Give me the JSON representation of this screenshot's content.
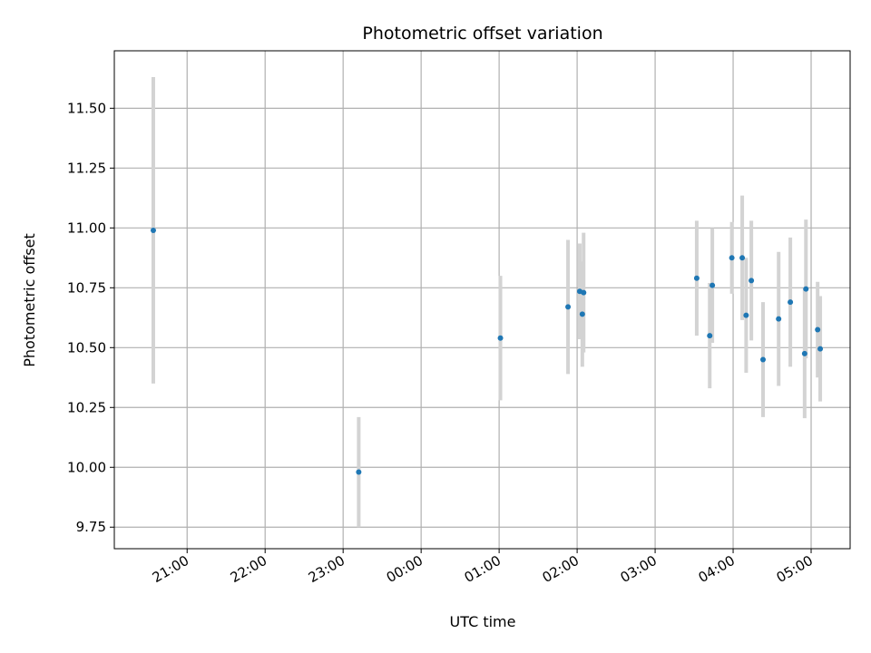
{
  "chart_data": {
    "type": "scatter",
    "title": "Photometric offset variation",
    "xlabel": "UTC time",
    "ylabel": "Photometric offset",
    "grid": true,
    "x_axis_kind": "time",
    "x_axis_dates": [
      "2024-01-01",
      "2024-01-02"
    ],
    "xlim": [
      "2024-01-01T20:04",
      "2024-01-02T05:30"
    ],
    "ylim": [
      9.66,
      11.74
    ],
    "x_ticks": [
      {
        "time": "2024-01-01T21:00",
        "label": "21:00"
      },
      {
        "time": "2024-01-01T22:00",
        "label": "22:00"
      },
      {
        "time": "2024-01-01T23:00",
        "label": "23:00"
      },
      {
        "time": "2024-01-02T00:00",
        "label": "00:00"
      },
      {
        "time": "2024-01-02T01:00",
        "label": "01:00"
      },
      {
        "time": "2024-01-02T02:00",
        "label": "02:00"
      },
      {
        "time": "2024-01-02T03:00",
        "label": "03:00"
      },
      {
        "time": "2024-01-02T04:00",
        "label": "04:00"
      },
      {
        "time": "2024-01-02T05:00",
        "label": "05:00"
      }
    ],
    "y_ticks": [
      9.75,
      10.0,
      10.25,
      10.5,
      10.75,
      11.0,
      11.25,
      11.5
    ],
    "y_tick_labels": [
      "9.75",
      "10.00",
      "10.25",
      "10.50",
      "10.75",
      "11.00",
      "11.25",
      "11.50"
    ],
    "colors": {
      "point": "#1f77b4",
      "errorbar": "#d3d3d3",
      "grid": "#b0b0b0"
    },
    "points": [
      {
        "x": "2024-01-01T20:34",
        "y": 10.99,
        "yerr": 0.64
      },
      {
        "x": "2024-01-01T23:12",
        "y": 9.98,
        "yerr": 0.23
      },
      {
        "x": "2024-01-02T01:01",
        "y": 10.54,
        "yerr": 0.26
      },
      {
        "x": "2024-01-02T01:53",
        "y": 10.67,
        "yerr": 0.28
      },
      {
        "x": "2024-01-02T02:02",
        "y": 10.735,
        "yerr": 0.2
      },
      {
        "x": "2024-01-02T02:04",
        "y": 10.64,
        "yerr": 0.22
      },
      {
        "x": "2024-01-02T02:05",
        "y": 10.73,
        "yerr": 0.25
      },
      {
        "x": "2024-01-02T03:32",
        "y": 10.79,
        "yerr": 0.24
      },
      {
        "x": "2024-01-02T03:42",
        "y": 10.55,
        "yerr": 0.22
      },
      {
        "x": "2024-01-02T03:44",
        "y": 10.76,
        "yerr": 0.24
      },
      {
        "x": "2024-01-02T03:59",
        "y": 10.875,
        "yerr": 0.15
      },
      {
        "x": "2024-01-02T04:07",
        "y": 10.875,
        "yerr": 0.26
      },
      {
        "x": "2024-01-02T04:10",
        "y": 10.635,
        "yerr": 0.24
      },
      {
        "x": "2024-01-02T04:14",
        "y": 10.78,
        "yerr": 0.25
      },
      {
        "x": "2024-01-02T04:23",
        "y": 10.45,
        "yerr": 0.24
      },
      {
        "x": "2024-01-02T04:35",
        "y": 10.62,
        "yerr": 0.28
      },
      {
        "x": "2024-01-02T04:44",
        "y": 10.69,
        "yerr": 0.27
      },
      {
        "x": "2024-01-02T04:55",
        "y": 10.475,
        "yerr": 0.27
      },
      {
        "x": "2024-01-02T04:56",
        "y": 10.745,
        "yerr": 0.29
      },
      {
        "x": "2024-01-02T05:05",
        "y": 10.575,
        "yerr": 0.2
      },
      {
        "x": "2024-01-02T05:07",
        "y": 10.495,
        "yerr": 0.22
      }
    ]
  }
}
